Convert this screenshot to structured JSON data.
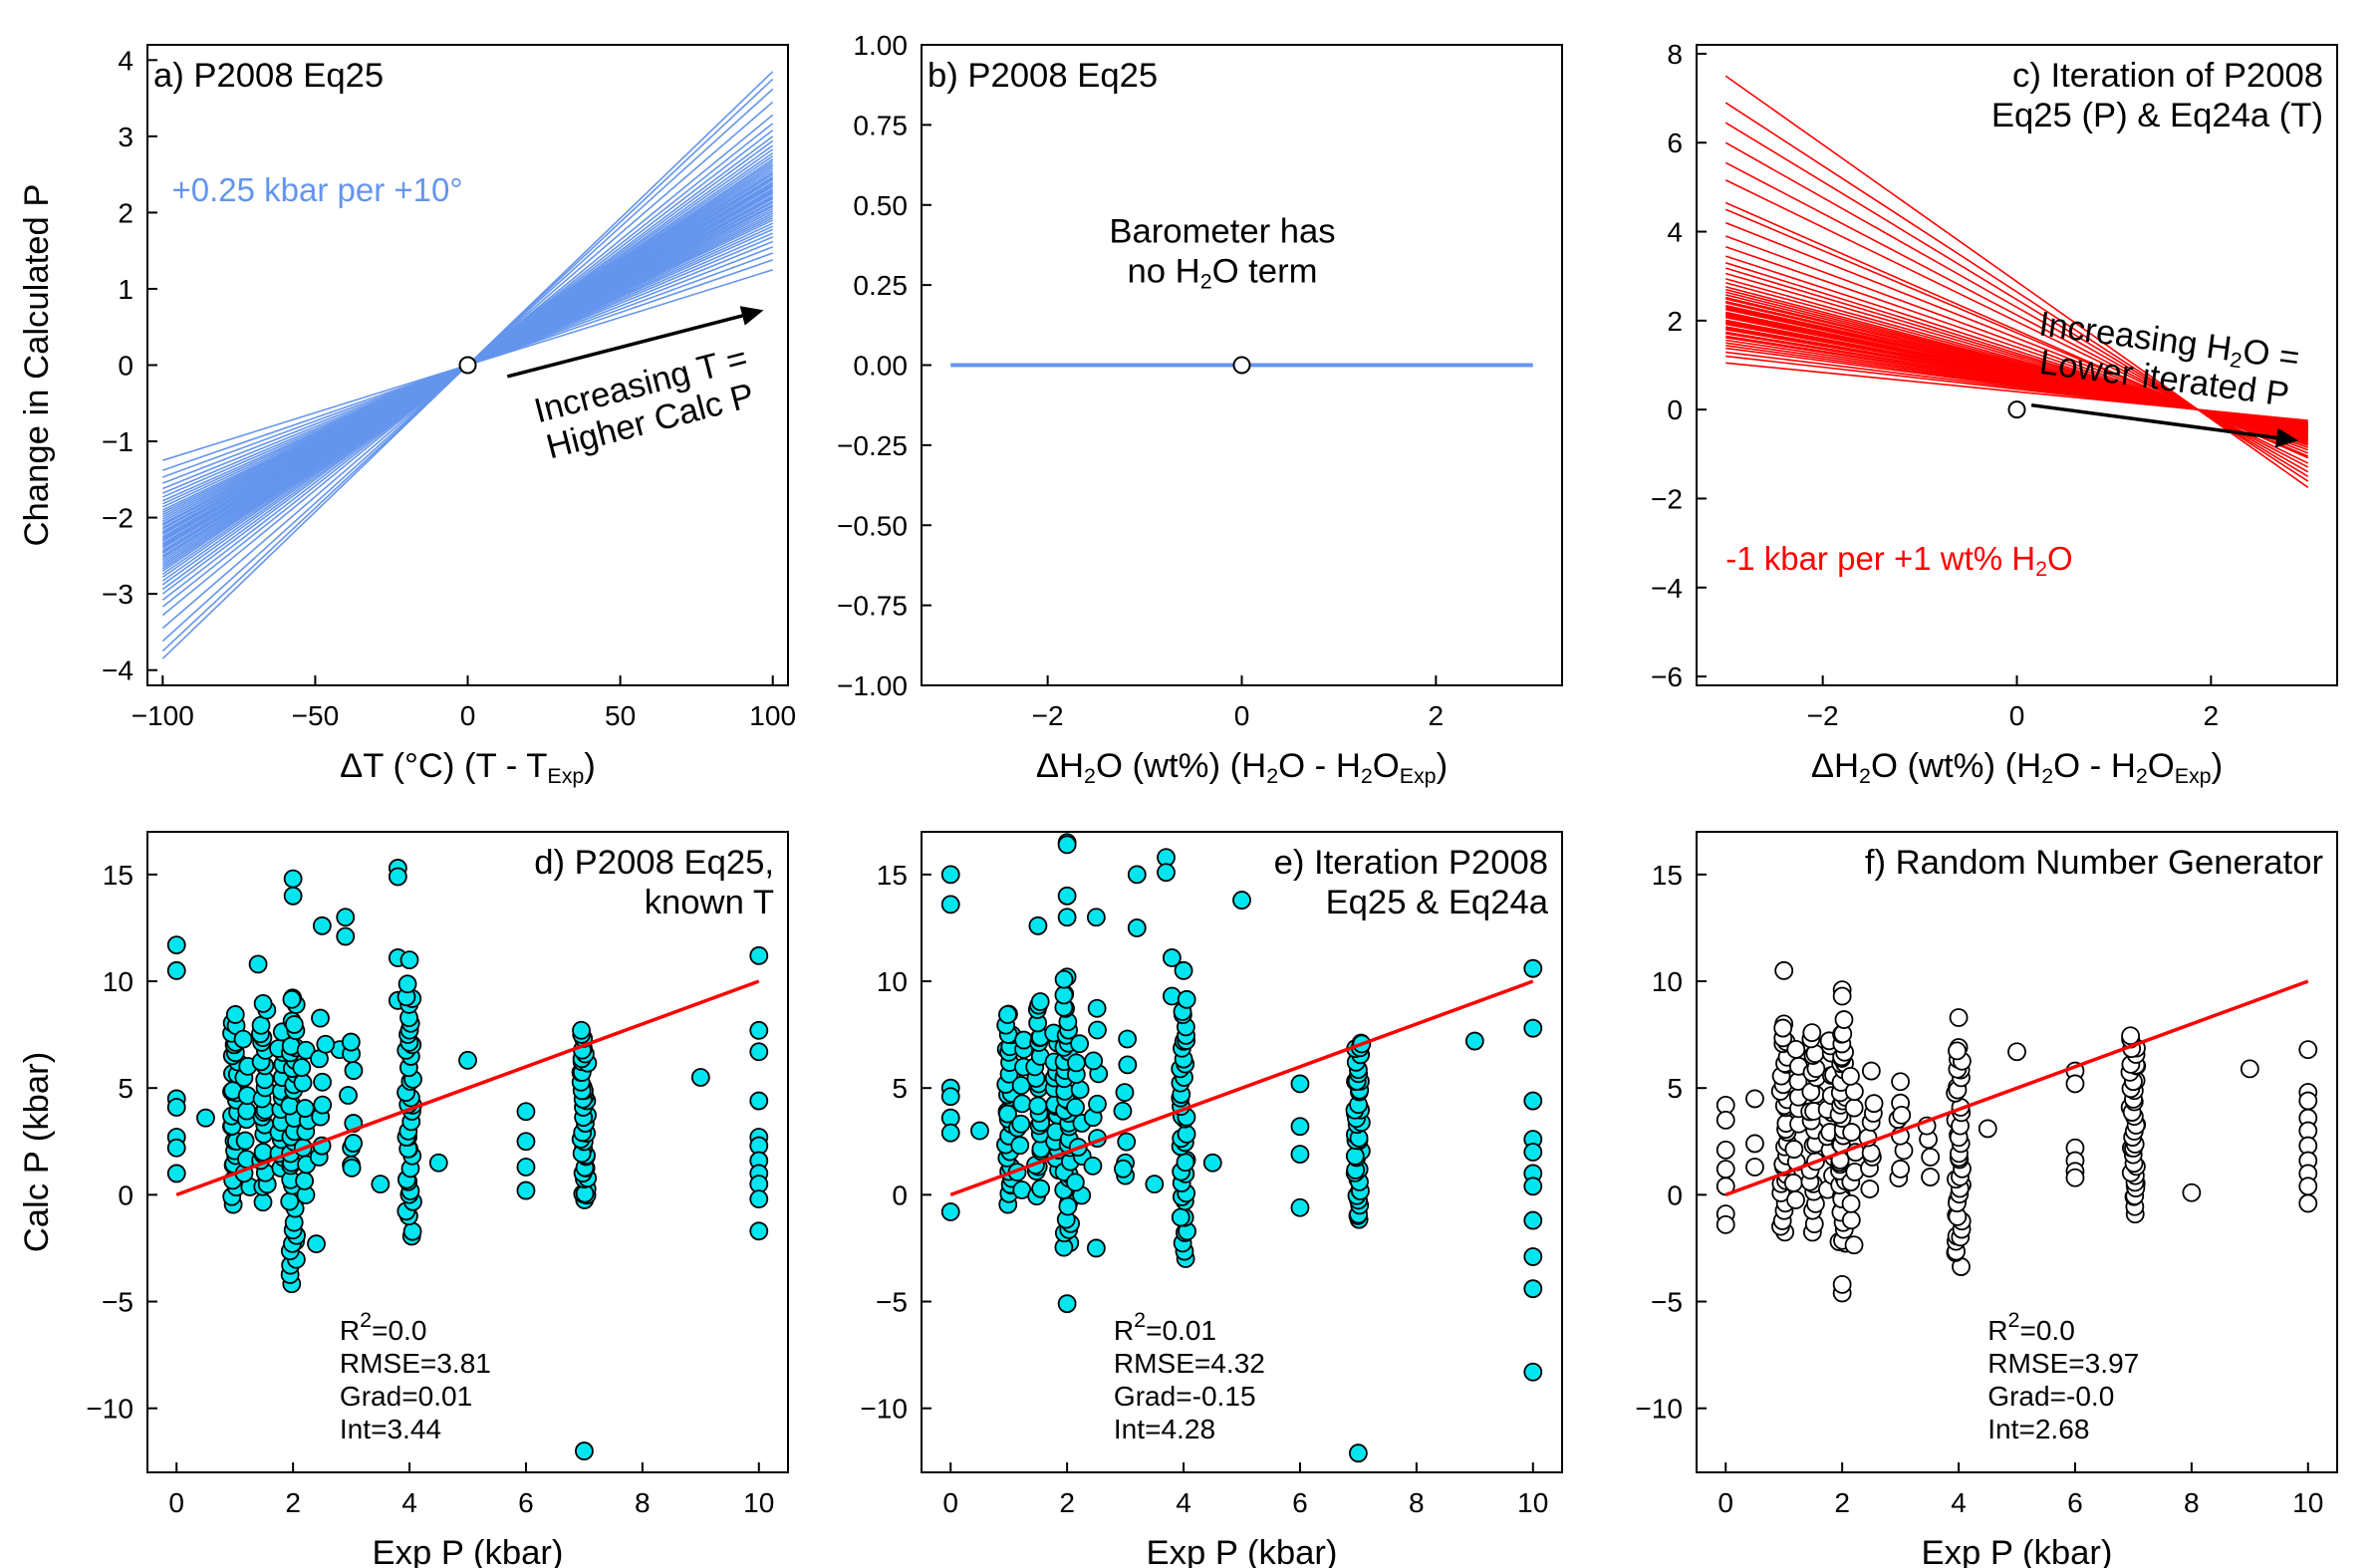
{
  "chart_data": [
    {
      "id": "a",
      "type": "line",
      "title": "a) P2008 Eq25",
      "xlabel": "ΔT (°C) (T - T",
      "xlabel_sub": "Exp",
      "xlabel_tail": ")",
      "ylabel": "Change in Calculated P",
      "xlim": [
        -105,
        105
      ],
      "ylim": [
        -4.2,
        4.2
      ],
      "xticks": [
        -100,
        -50,
        0,
        50,
        100
      ],
      "yticks": [
        -4,
        -3,
        -2,
        -1,
        0,
        1,
        2,
        3,
        4
      ],
      "tick_decimals": 0,
      "line_color": "#6495ED",
      "x_range": [
        -100,
        100
      ],
      "slopes_per_unit": [
        0.0125,
        0.0138,
        0.0147,
        0.0155,
        0.0162,
        0.0168,
        0.0173,
        0.0178,
        0.0182,
        0.0186,
        0.019,
        0.0193,
        0.0196,
        0.0199,
        0.0202,
        0.0205,
        0.0208,
        0.021,
        0.0213,
        0.0215,
        0.0218,
        0.022,
        0.0222,
        0.0225,
        0.0227,
        0.0229,
        0.0231,
        0.0234,
        0.0236,
        0.0238,
        0.024,
        0.0243,
        0.0245,
        0.0247,
        0.025,
        0.0252,
        0.0255,
        0.0258,
        0.0261,
        0.0264,
        0.0267,
        0.027,
        0.0274,
        0.0278,
        0.0283,
        0.0288,
        0.0294,
        0.03,
        0.0308,
        0.0317,
        0.0328,
        0.0345,
        0.0362,
        0.0375,
        0.0385
      ],
      "annotations": [
        {
          "text": "+0.25 kbar per +10°",
          "x": -97,
          "y": 2.15,
          "color": "#6495ED"
        }
      ],
      "arrow": {
        "from": [
          13,
          -0.15
        ],
        "to": [
          97,
          0.72
        ]
      },
      "arrow_label_lines": [
        "Increasing T =",
        "Higher Calc  P"
      ],
      "arrow_label_center": [
        58,
        -0.45
      ],
      "marker_origin": [
        0,
        0
      ]
    },
    {
      "id": "b",
      "type": "line",
      "title": "b) P2008 Eq25",
      "xlabel": "ΔH",
      "xlabel_mid": "O (wt%) (H",
      "xlabel_mid2": "O - H",
      "xlabel_mid3": "O",
      "xlabel_sub": "Exp",
      "xlabel_tail": ")",
      "xlim": [
        -3.3,
        3.3
      ],
      "ylim": [
        -1.0,
        1.0
      ],
      "xticks": [
        -2,
        0,
        2
      ],
      "yticks": [
        -1.0,
        -0.75,
        -0.5,
        -0.25,
        0.0,
        0.25,
        0.5,
        0.75,
        1.0
      ],
      "tick_decimals": 2,
      "line_color": "#6495ED",
      "x_range": [
        -3,
        3
      ],
      "flat_line": true,
      "annotation_lines": [
        "Barometer has",
        "no H",
        "O term"
      ],
      "annotation_center": [
        -0.2,
        0.32
      ],
      "marker_origin": [
        0,
        0
      ]
    },
    {
      "id": "c",
      "type": "line",
      "title": "c) Iteration of P2008",
      "title_line2": "Eq25 (P) & Eq24a (T)",
      "xlabel": "ΔH",
      "xlabel_mid": "O (wt%) (H",
      "xlabel_mid2": "O - H",
      "xlabel_mid3": "O",
      "xlabel_sub": "Exp",
      "xlabel_tail": ")",
      "xlim": [
        -3.3,
        3.3
      ],
      "ylim": [
        -6.2,
        8.2
      ],
      "xticks": [
        -2,
        0,
        2
      ],
      "yticks": [
        -6,
        -4,
        -2,
        0,
        2,
        4,
        6,
        8
      ],
      "tick_decimals": 0,
      "line_color": "#FF0000",
      "x_range": [
        -3,
        3
      ],
      "neg_slopes": [
        0.35,
        0.4,
        0.43,
        0.46,
        0.48,
        0.5,
        0.52,
        0.54,
        0.55,
        0.57,
        0.58,
        0.6,
        0.61,
        0.62,
        0.64,
        0.65,
        0.66,
        0.67,
        0.69,
        0.7,
        0.71,
        0.72,
        0.73,
        0.75,
        0.76,
        0.77,
        0.78,
        0.8,
        0.81,
        0.83,
        0.84,
        0.86,
        0.88,
        0.9,
        0.92,
        0.95,
        0.98,
        1.02,
        1.06,
        1.1,
        1.15,
        1.22,
        1.3,
        1.4,
        1.5,
        1.55,
        1.72,
        1.85,
        2.0,
        2.15,
        2.3,
        2.5
      ],
      "annotations": [
        {
          "text": "-1 kbar per +1 wt% H",
          "sub": "2",
          "tail": "O",
          "x": -3.0,
          "y": -3.6,
          "color": "#FF0000"
        }
      ],
      "arrow": {
        "from": [
          0.15,
          0.1
        ],
        "to": [
          2.9,
          -0.7
        ]
      },
      "arrow_label_lines": [
        "Increasing H",
        "O =",
        "Lower iterated  P"
      ],
      "arrow_label_center": [
        1.55,
        1.2
      ],
      "marker_origin": [
        0,
        0
      ]
    },
    {
      "id": "d",
      "type": "scatter",
      "title": "d) P2008 Eq25,",
      "title_line2": "known T",
      "xlabel": "Exp P (kbar)",
      "ylabel": "Calc P (kbar)",
      "xlim": [
        -0.5,
        10.5
      ],
      "ylim": [
        -13,
        17
      ],
      "xticks": [
        0,
        2,
        4,
        6,
        8,
        10
      ],
      "yticks": [
        -10,
        -5,
        0,
        5,
        10,
        15
      ],
      "tick_decimals": 0,
      "marker_fill": "#00E5EE",
      "fit_line": {
        "from": [
          0,
          0
        ],
        "to": [
          10,
          10
        ],
        "color": "#FF0000"
      },
      "stats": {
        "r2": "R",
        "r2_sup": "2",
        "r2_val": "=0.0",
        "rmse": "RMSE=3.81",
        "grad": "Grad=0.01",
        "int": "Int=3.44"
      },
      "stats_pos": [
        2.8,
        -6.8
      ],
      "seed": 11,
      "points": [
        [
          0,
          11.7
        ],
        [
          0,
          10.5
        ],
        [
          0,
          4.5
        ],
        [
          0,
          4.1
        ],
        [
          0,
          2.7
        ],
        [
          0,
          2.2
        ],
        [
          0,
          1.0
        ],
        [
          0.5,
          3.6
        ],
        [
          2,
          14.8
        ],
        [
          2,
          14.0
        ],
        [
          2.5,
          12.6
        ],
        [
          2.9,
          13.0
        ],
        [
          2.9,
          12.1
        ],
        [
          3.8,
          15.3
        ],
        [
          3.8,
          14.9
        ],
        [
          3.8,
          11.1
        ],
        [
          4.0,
          11.0
        ],
        [
          3.8,
          9.1
        ],
        [
          1.4,
          10.8
        ],
        [
          2.8,
          6.8
        ],
        [
          3.0,
          6.6
        ],
        [
          4.5,
          1.5
        ],
        [
          5.0,
          6.3
        ],
        [
          6.0,
          3.9
        ],
        [
          6.0,
          2.5
        ],
        [
          6.0,
          1.3
        ],
        [
          6.0,
          0.2
        ],
        [
          9.0,
          5.5
        ],
        [
          7.0,
          -12.0
        ],
        [
          10.0,
          11.2
        ],
        [
          10.0,
          7.7
        ],
        [
          10.0,
          6.7
        ],
        [
          10.0,
          4.4
        ],
        [
          10.0,
          2.7
        ],
        [
          10.0,
          2.3
        ],
        [
          10.0,
          1.6
        ],
        [
          10.0,
          1.0
        ],
        [
          10.0,
          0.5
        ],
        [
          10.0,
          -0.2
        ],
        [
          10.0,
          -1.7
        ],
        [
          2.4,
          -2.3
        ],
        [
          3.0,
          2.2
        ],
        [
          3.0,
          1.4
        ],
        [
          3.5,
          0.5
        ]
      ],
      "point_columns": [
        {
          "x": 1.0,
          "n": 30,
          "ymin": -0.3,
          "ymax": 8.5
        },
        {
          "x": 1.2,
          "n": 10,
          "ymin": 0.5,
          "ymax": 7.0
        },
        {
          "x": 1.5,
          "n": 24,
          "ymin": -0.2,
          "ymax": 9.0
        },
        {
          "x": 1.8,
          "n": 14,
          "ymin": 1.0,
          "ymax": 7.5
        },
        {
          "x": 2.0,
          "n": 40,
          "ymin": -4.2,
          "ymax": 9.3
        },
        {
          "x": 2.2,
          "n": 10,
          "ymin": 0.0,
          "ymax": 6.5
        },
        {
          "x": 2.5,
          "n": 8,
          "ymin": 1.5,
          "ymax": 8.0
        },
        {
          "x": 3.0,
          "n": 6,
          "ymin": 1.0,
          "ymax": 7.0
        },
        {
          "x": 4.0,
          "n": 38,
          "ymin": -1.8,
          "ymax": 9.7
        },
        {
          "x": 7.0,
          "n": 40,
          "ymin": -0.5,
          "ymax": 7.7
        }
      ]
    },
    {
      "id": "e",
      "type": "scatter",
      "title": "e) Iteration P2008",
      "title_line2": "Eq25 & Eq24a",
      "xlabel": "Exp P (kbar)",
      "xlim": [
        -0.5,
        10.5
      ],
      "ylim": [
        -13,
        17
      ],
      "xticks": [
        0,
        2,
        4,
        6,
        8,
        10
      ],
      "yticks": [
        -10,
        -5,
        0,
        5,
        10,
        15
      ],
      "tick_decimals": 0,
      "marker_fill": "#00E5EE",
      "fit_line": {
        "from": [
          0,
          0
        ],
        "to": [
          10,
          10
        ],
        "color": "#FF0000"
      },
      "stats": {
        "r2": "R",
        "r2_sup": "2",
        "r2_val": "=0.01",
        "rmse": "RMSE=4.32",
        "grad": "Grad=-0.15",
        "int": "Int=4.28"
      },
      "stats_pos": [
        2.8,
        -6.8
      ],
      "seed": 23,
      "points": [
        [
          0,
          15.0
        ],
        [
          0,
          13.6
        ],
        [
          0,
          5.0
        ],
        [
          0,
          4.6
        ],
        [
          0,
          3.6
        ],
        [
          0,
          2.9
        ],
        [
          0,
          -0.8
        ],
        [
          0.5,
          3.0
        ],
        [
          2,
          16.5
        ],
        [
          2,
          16.4
        ],
        [
          2,
          14.0
        ],
        [
          2,
          13.0
        ],
        [
          1.5,
          12.6
        ],
        [
          2.5,
          13.0
        ],
        [
          3.2,
          15.0
        ],
        [
          3.2,
          12.5
        ],
        [
          3.7,
          15.8
        ],
        [
          3.7,
          15.1
        ],
        [
          3.8,
          11.1
        ],
        [
          4.0,
          10.5
        ],
        [
          3.8,
          9.3
        ],
        [
          2,
          10.2
        ],
        [
          2,
          -5.1
        ],
        [
          2.5,
          -2.5
        ],
        [
          4.5,
          1.5
        ],
        [
          5.0,
          13.8
        ],
        [
          6.0,
          5.2
        ],
        [
          6.0,
          3.2
        ],
        [
          6.0,
          1.9
        ],
        [
          6.0,
          -0.6
        ],
        [
          9.0,
          7.2
        ],
        [
          7.0,
          -12.1
        ],
        [
          10.0,
          10.6
        ],
        [
          10.0,
          7.8
        ],
        [
          10.0,
          4.4
        ],
        [
          10.0,
          2.6
        ],
        [
          10.0,
          2.0
        ],
        [
          10.0,
          1.0
        ],
        [
          10.0,
          0.4
        ],
        [
          10.0,
          -1.2
        ],
        [
          10.0,
          -2.9
        ],
        [
          10.0,
          -4.4
        ],
        [
          10.0,
          -8.3
        ],
        [
          3.0,
          1.5
        ],
        [
          3.0,
          0.9
        ],
        [
          3.5,
          0.5
        ]
      ],
      "point_columns": [
        {
          "x": 1.0,
          "n": 30,
          "ymin": -0.3,
          "ymax": 8.7
        },
        {
          "x": 1.2,
          "n": 10,
          "ymin": 0.5,
          "ymax": 7.5
        },
        {
          "x": 1.5,
          "n": 24,
          "ymin": 0.0,
          "ymax": 9.3
        },
        {
          "x": 1.8,
          "n": 14,
          "ymin": 1.0,
          "ymax": 7.5
        },
        {
          "x": 2.0,
          "n": 40,
          "ymin": -2.5,
          "ymax": 9.8
        },
        {
          "x": 2.2,
          "n": 10,
          "ymin": 0.0,
          "ymax": 7.0
        },
        {
          "x": 2.5,
          "n": 8,
          "ymin": 1.5,
          "ymax": 8.5
        },
        {
          "x": 3.0,
          "n": 6,
          "ymin": 1.5,
          "ymax": 7.2
        },
        {
          "x": 4.0,
          "n": 38,
          "ymin": -2.7,
          "ymax": 9.0
        },
        {
          "x": 7.0,
          "n": 40,
          "ymin": -1.2,
          "ymax": 7.3
        }
      ]
    },
    {
      "id": "f",
      "type": "scatter",
      "title": "f) Random Number Generator",
      "xlabel": "Exp P (kbar)",
      "xlim": [
        -0.5,
        10.5
      ],
      "ylim": [
        -13,
        17
      ],
      "xticks": [
        0,
        2,
        4,
        6,
        8,
        10
      ],
      "yticks": [
        -10,
        -5,
        0,
        5,
        10,
        15
      ],
      "tick_decimals": 0,
      "marker_fill": "#FFFFFF",
      "fit_line": {
        "from": [
          0,
          0
        ],
        "to": [
          10,
          10
        ],
        "color": "#FF0000"
      },
      "stats": {
        "r2": "R",
        "r2_sup": "2",
        "r2_val": "=0.0",
        "rmse": "RMSE=3.97",
        "grad": "Grad=-0.0",
        "int": "Int=2.68"
      },
      "stats_pos": [
        4.5,
        -6.8
      ],
      "seed": 37,
      "points": [
        [
          0,
          4.2
        ],
        [
          0,
          3.5
        ],
        [
          0,
          2.1
        ],
        [
          0,
          1.2
        ],
        [
          0,
          0.4
        ],
        [
          0,
          -0.9
        ],
        [
          0,
          -1.4
        ],
        [
          0.5,
          4.5
        ],
        [
          0.5,
          2.4
        ],
        [
          0.5,
          1.3
        ],
        [
          1.0,
          10.5
        ],
        [
          1.0,
          8.0
        ],
        [
          2.0,
          9.6
        ],
        [
          2.0,
          9.3
        ],
        [
          2.0,
          -4.6
        ],
        [
          2.0,
          -4.2
        ],
        [
          2.5,
          5.8
        ],
        [
          3.0,
          5.3
        ],
        [
          3.0,
          4.3
        ],
        [
          4.0,
          8.3
        ],
        [
          4.0,
          6.9
        ],
        [
          4.5,
          3.1
        ],
        [
          5.0,
          6.7
        ],
        [
          6.0,
          5.8
        ],
        [
          6.0,
          5.2
        ],
        [
          6.0,
          2.2
        ],
        [
          6.0,
          1.6
        ],
        [
          6.0,
          1.1
        ],
        [
          6.0,
          0.8
        ],
        [
          8.0,
          0.1
        ],
        [
          9.0,
          5.9
        ],
        [
          10.0,
          6.8
        ],
        [
          10.0,
          4.8
        ],
        [
          10.0,
          4.4
        ],
        [
          10.0,
          3.6
        ],
        [
          10.0,
          3.0
        ],
        [
          10.0,
          2.3
        ],
        [
          10.0,
          1.6
        ],
        [
          10.0,
          1.0
        ],
        [
          10.0,
          0.4
        ],
        [
          10.0,
          -0.4
        ]
      ],
      "point_columns": [
        {
          "x": 1.0,
          "n": 30,
          "ymin": -1.6,
          "ymax": 7.9
        },
        {
          "x": 1.2,
          "n": 10,
          "ymin": 0.0,
          "ymax": 7.0
        },
        {
          "x": 1.5,
          "n": 24,
          "ymin": -1.5,
          "ymax": 7.6
        },
        {
          "x": 1.8,
          "n": 14,
          "ymin": 0.5,
          "ymax": 7.5
        },
        {
          "x": 2.0,
          "n": 40,
          "ymin": -2.4,
          "ymax": 8.0
        },
        {
          "x": 2.2,
          "n": 10,
          "ymin": -2.2,
          "ymax": 5.5
        },
        {
          "x": 2.5,
          "n": 8,
          "ymin": 0.5,
          "ymax": 4.5
        },
        {
          "x": 3.0,
          "n": 6,
          "ymin": 0.5,
          "ymax": 4.0
        },
        {
          "x": 3.5,
          "n": 4,
          "ymin": 1.0,
          "ymax": 3.0
        },
        {
          "x": 4.0,
          "n": 38,
          "ymin": -3.2,
          "ymax": 6.7
        },
        {
          "x": 7.0,
          "n": 40,
          "ymin": -0.7,
          "ymax": 7.3
        }
      ]
    }
  ]
}
